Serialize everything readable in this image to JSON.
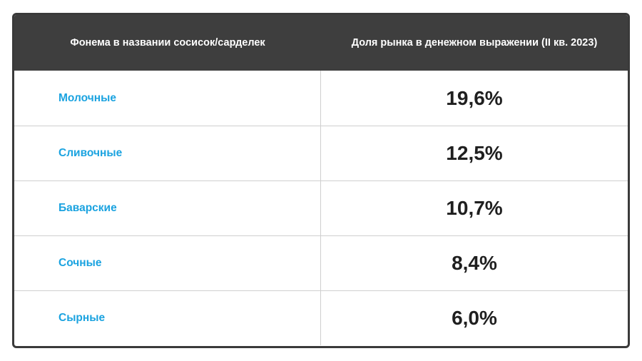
{
  "table": {
    "headers": [
      "Фонема в названии сосисок/сарделек",
      "Доля рынка в денежном выражении (II кв. 2023)"
    ],
    "rows": [
      {
        "name": "Молочные",
        "value": "19,6%"
      },
      {
        "name": "Сливочные",
        "value": "12,5%"
      },
      {
        "name": "Баварские",
        "value": "10,7%"
      },
      {
        "name": "Сочные",
        "value": "8,4%"
      },
      {
        "name": "Сырные",
        "value": "6,0%"
      }
    ]
  },
  "colors": {
    "header_bg": "#3e3e3e",
    "name_text": "#1ba3e0",
    "value_text": "#1f1f1f",
    "border": "#3a3a3a"
  }
}
